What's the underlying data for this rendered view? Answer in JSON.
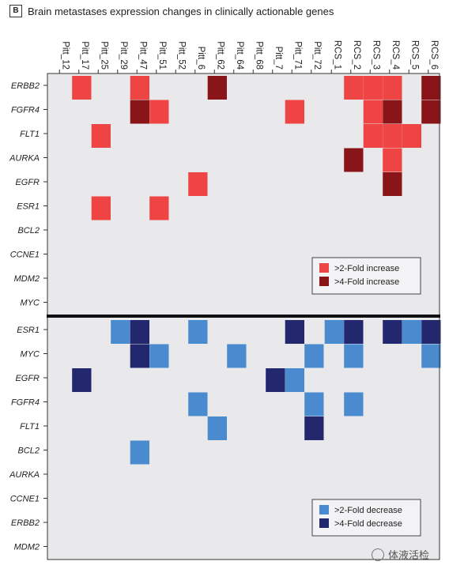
{
  "panel_label": "B",
  "colors": {
    "background": "#e9e9ec",
    "inc_2fold": "#ef4444",
    "inc_4fold": "#8a1519",
    "dec_2fold": "#4a8bd0",
    "dec_4fold": "#22276e"
  },
  "watermark": "体液活检",
  "chart_data": {
    "type": "heatmap",
    "title": "Brain metastases expression changes in clinically actionable genes",
    "samples": [
      "Pitt_12",
      "Pitt_17",
      "Pitt_25",
      "Pitt_29",
      "Pitt_47",
      "Pitt_51",
      "Pitt_52",
      "Pitt_6",
      "Pitt_62",
      "Pitt_64",
      "Pitt_68",
      "Pitt_7",
      "Pitt_71",
      "Pitt_72",
      "RCS_1",
      "RCS_2",
      "RCS_3",
      "RCS_4",
      "RCS_5",
      "RCS_6"
    ],
    "panels": [
      {
        "name": "increase",
        "genes": [
          "ERBB2",
          "FGFR4",
          "FLT1",
          "AURKA",
          "EGFR",
          "ESR1",
          "BCL2",
          "CCNE1",
          "MDM2",
          "MYC"
        ],
        "legend": [
          {
            "level": 2,
            "label": ">2-Fold increase"
          },
          {
            "level": 4,
            "label": ">4-Fold increase"
          }
        ],
        "matrix": [
          [
            0,
            2,
            0,
            0,
            2,
            0,
            0,
            0,
            4,
            0,
            0,
            0,
            0,
            0,
            0,
            2,
            2,
            2,
            0,
            4
          ],
          [
            0,
            0,
            0,
            0,
            4,
            2,
            0,
            0,
            0,
            0,
            0,
            0,
            2,
            0,
            0,
            0,
            2,
            4,
            0,
            4
          ],
          [
            0,
            0,
            2,
            0,
            0,
            0,
            0,
            0,
            0,
            0,
            0,
            0,
            0,
            0,
            0,
            0,
            2,
            2,
            2,
            0
          ],
          [
            0,
            0,
            0,
            0,
            0,
            0,
            0,
            0,
            0,
            0,
            0,
            0,
            0,
            0,
            0,
            4,
            0,
            2,
            0,
            0
          ],
          [
            0,
            0,
            0,
            0,
            0,
            0,
            0,
            2,
            0,
            0,
            0,
            0,
            0,
            0,
            0,
            0,
            0,
            4,
            0,
            0
          ],
          [
            0,
            0,
            2,
            0,
            0,
            2,
            0,
            0,
            0,
            0,
            0,
            0,
            0,
            0,
            0,
            0,
            0,
            0,
            0,
            0
          ],
          [
            0,
            0,
            0,
            0,
            0,
            0,
            0,
            0,
            0,
            0,
            0,
            0,
            0,
            0,
            0,
            0,
            0,
            0,
            0,
            0
          ],
          [
            0,
            0,
            0,
            0,
            0,
            0,
            0,
            0,
            0,
            0,
            0,
            0,
            0,
            0,
            0,
            0,
            0,
            0,
            0,
            0
          ],
          [
            0,
            0,
            0,
            0,
            0,
            0,
            0,
            0,
            0,
            0,
            0,
            0,
            0,
            0,
            0,
            0,
            0,
            0,
            0,
            0
          ],
          [
            0,
            0,
            0,
            0,
            0,
            0,
            0,
            0,
            0,
            0,
            0,
            0,
            0,
            0,
            0,
            0,
            0,
            0,
            0,
            0
          ]
        ]
      },
      {
        "name": "decrease",
        "genes": [
          "ESR1",
          "MYC",
          "EGFR",
          "FGFR4",
          "FLT1",
          "BCL2",
          "AURKA",
          "CCNE1",
          "ERBB2",
          "MDM2"
        ],
        "legend": [
          {
            "level": 2,
            "label": ">2-Fold decrease"
          },
          {
            "level": 4,
            "label": ">4-Fold decrease"
          }
        ],
        "matrix": [
          [
            0,
            0,
            0,
            2,
            4,
            0,
            0,
            2,
            0,
            0,
            0,
            0,
            4,
            0,
            2,
            4,
            0,
            4,
            2,
            4
          ],
          [
            0,
            0,
            0,
            0,
            4,
            2,
            0,
            0,
            0,
            2,
            0,
            0,
            0,
            2,
            0,
            2,
            0,
            0,
            0,
            2
          ],
          [
            0,
            4,
            0,
            0,
            0,
            0,
            0,
            0,
            0,
            0,
            0,
            4,
            2,
            0,
            0,
            0,
            0,
            0,
            0,
            0
          ],
          [
            0,
            0,
            0,
            0,
            0,
            0,
            0,
            2,
            0,
            0,
            0,
            0,
            0,
            2,
            0,
            2,
            0,
            0,
            0,
            0
          ],
          [
            0,
            0,
            0,
            0,
            0,
            0,
            0,
            0,
            2,
            0,
            0,
            0,
            0,
            4,
            0,
            0,
            0,
            0,
            0,
            0
          ],
          [
            0,
            0,
            0,
            0,
            2,
            0,
            0,
            0,
            0,
            0,
            0,
            0,
            0,
            0,
            0,
            0,
            0,
            0,
            0,
            0
          ],
          [
            0,
            0,
            0,
            0,
            0,
            0,
            0,
            0,
            0,
            0,
            0,
            0,
            0,
            0,
            0,
            0,
            0,
            0,
            0,
            0
          ],
          [
            0,
            0,
            0,
            0,
            0,
            0,
            0,
            0,
            0,
            0,
            0,
            0,
            0,
            0,
            0,
            0,
            0,
            0,
            0,
            0
          ],
          [
            0,
            0,
            0,
            0,
            0,
            0,
            0,
            0,
            0,
            0,
            0,
            0,
            0,
            0,
            0,
            0,
            0,
            0,
            0,
            0
          ],
          [
            0,
            0,
            0,
            0,
            0,
            0,
            0,
            0,
            0,
            0,
            0,
            0,
            0,
            0,
            0,
            0,
            0,
            0,
            0,
            0
          ]
        ]
      }
    ]
  }
}
